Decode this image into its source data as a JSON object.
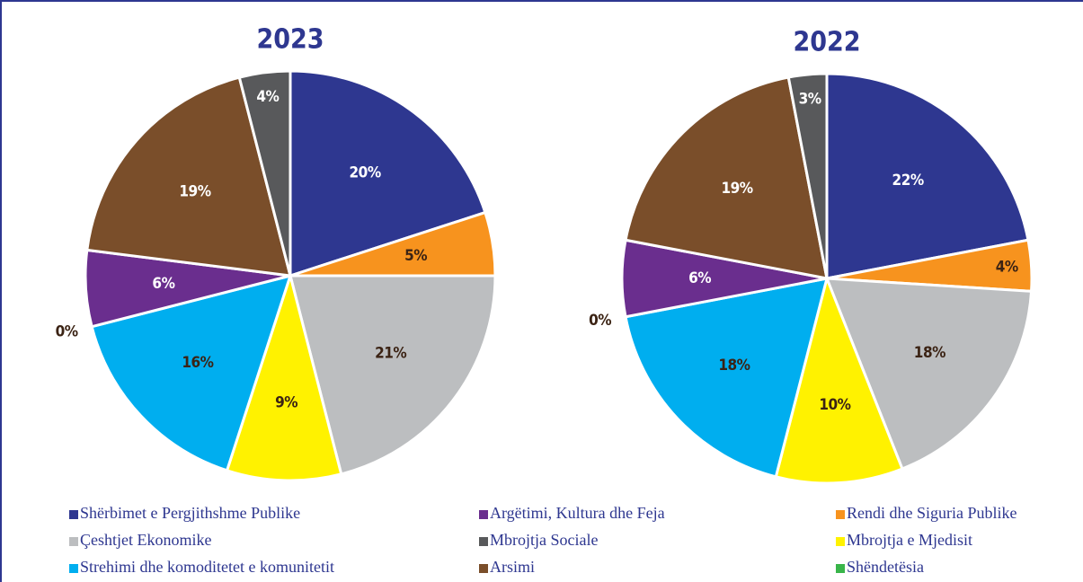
{
  "legend": {
    "categories": [
      "Shërbimet e Pergjithshme Publike",
      "Argëtimi, Kultura dhe Feja",
      "Rendi dhe Siguria Publike",
      "Çeshtjet Ekonomike",
      "Mbrojtja Sociale",
      "Mbrojtja e Mjedisit",
      "Strehimi dhe komoditetet e komunitetit",
      "Arsimi",
      "Shëndetësia"
    ],
    "colors": [
      "#2e3790",
      "#6a2e8e",
      "#f7931e",
      "#bcbec0",
      "#58595b",
      "#fff200",
      "#00aeef",
      "#7a4e2a",
      "#39b54a"
    ]
  },
  "chart_data": [
    {
      "type": "pie",
      "title": "2023",
      "values": [
        20,
        6,
        5,
        21,
        4,
        9,
        16,
        19,
        0
      ],
      "value_labels": [
        "20%",
        "6%",
        "5%",
        "21%",
        "4%",
        "9%",
        "16%",
        "19%",
        "0%"
      ]
    },
    {
      "type": "pie",
      "title": "2022",
      "values": [
        22,
        6,
        4,
        18,
        3,
        10,
        18,
        19,
        0
      ],
      "value_labels": [
        "22%",
        "6%",
        "4%",
        "18%",
        "3%",
        "10%",
        "18%",
        "19%",
        "0%"
      ]
    }
  ]
}
